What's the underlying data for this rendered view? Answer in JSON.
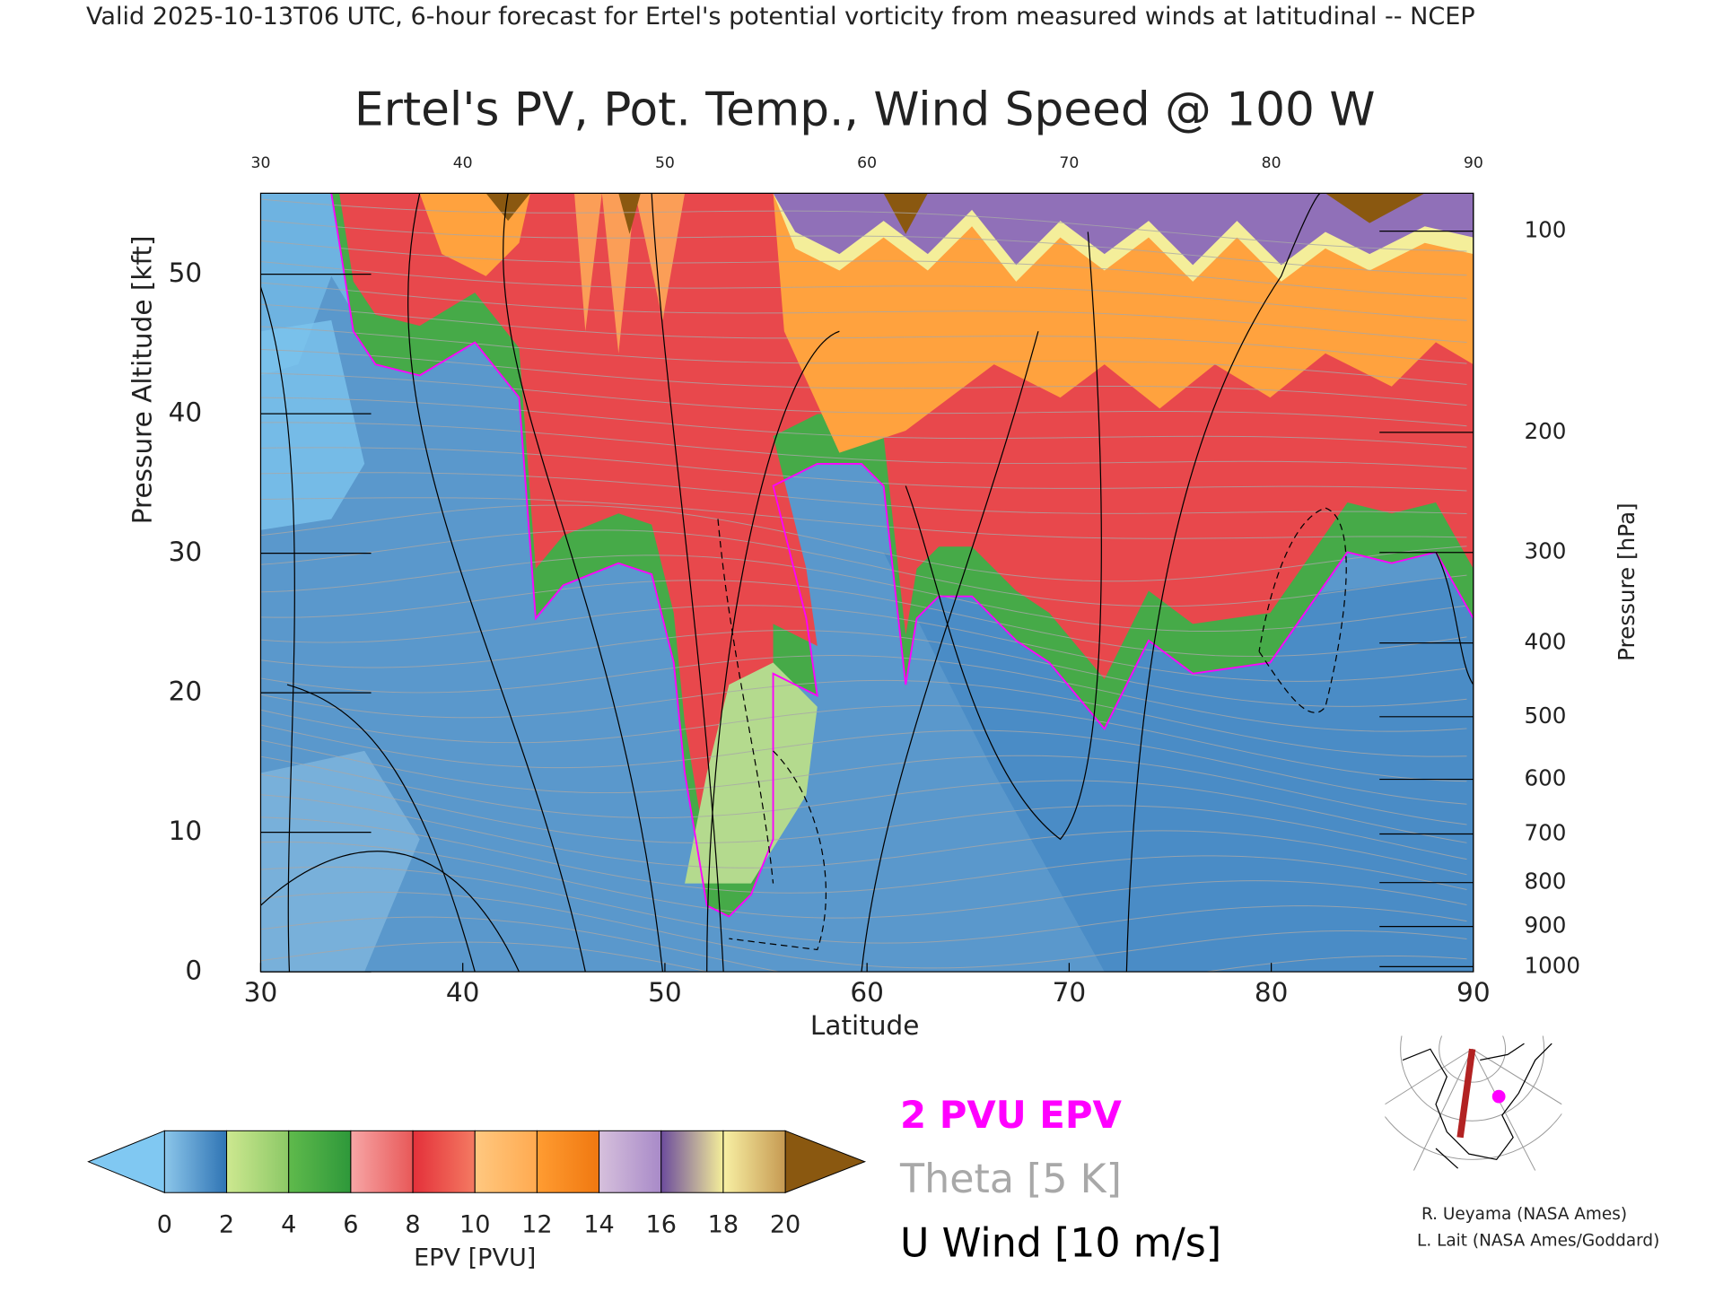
{
  "header": "Valid 2025-10-13T06 UTC, 6-hour forecast for Ertel's potential vorticity from measured winds at latitudinal -- NCEP",
  "chart_data": {
    "type": "cross-section",
    "title": "Ertel's PV, Pot. Temp., Wind Speed @ 100 W",
    "x_label": "Latitude",
    "y_label": "Pressure Altitude [kft]",
    "y2_label": "Pressure [hPa]",
    "xlim": [
      30,
      90
    ],
    "xticks": [
      30,
      40,
      50,
      60,
      70,
      80,
      90
    ],
    "ylim": [
      0,
      55.8
    ],
    "yticks": [
      0,
      10,
      20,
      30,
      40,
      50
    ],
    "y2lim": [
      1013,
      88
    ],
    "y2ticks": [
      100,
      200,
      300,
      400,
      500,
      600,
      700,
      800,
      900,
      1000
    ],
    "y2scale": "pressure-altitude",
    "colorbar": {
      "label": "EPV [PVU]",
      "ticks": [
        0,
        2,
        4,
        6,
        8,
        10,
        12,
        14,
        16,
        18,
        20
      ],
      "colors": [
        [
          "#8cc6ea",
          "#2f74b4"
        ],
        [
          "#cde890",
          "#8cc866"
        ],
        [
          "#5fba4c",
          "#2e983a"
        ],
        [
          "#f7a6a6",
          "#e85858"
        ],
        [
          "#e4303a",
          "#f47a62"
        ],
        [
          "#ffc880",
          "#ffaa50"
        ],
        [
          "#ff9c32",
          "#f07810"
        ],
        [
          "#d6c0dc",
          "#a88ac8"
        ],
        [
          "#6c4c9c",
          "#f4ee9a"
        ],
        [
          "#f8f0a4",
          "#c69a52"
        ]
      ],
      "under_color": "#80c8f2",
      "over_color": "#8a5810"
    },
    "legend": [
      {
        "name": "2 PVU EPV",
        "color": "#ff00ff"
      },
      {
        "name": "Theta [5 K]",
        "color": "#a8a8a8"
      },
      {
        "name": "U Wind [10 m/s]",
        "color": "#000000"
      }
    ]
  },
  "credits": [
    "R. Ueyama (NASA Ames)",
    "L. Lait (NASA Ames/Goddard)"
  ]
}
